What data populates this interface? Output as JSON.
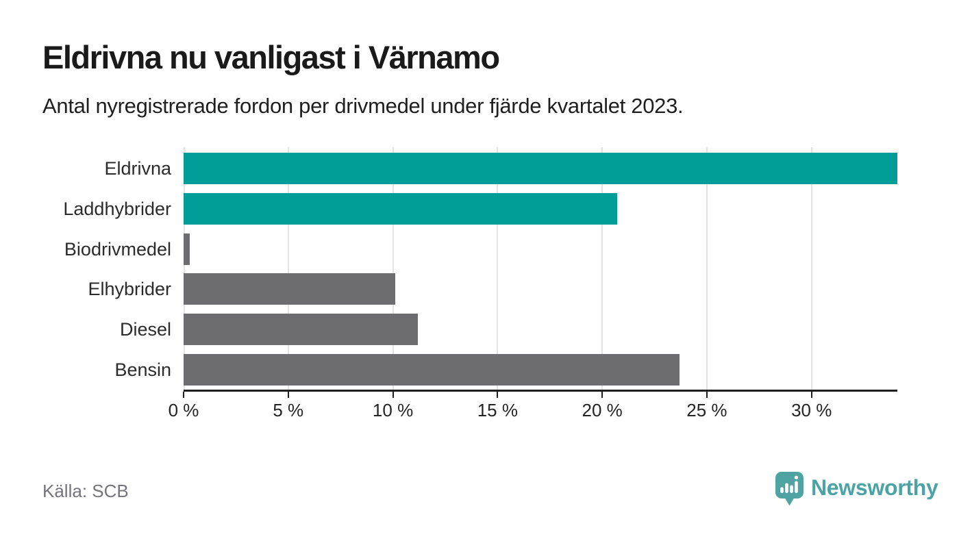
{
  "header": {
    "title": "Eldrivna nu vanligast i Värnamo",
    "subtitle": "Antal nyregistrerade fordon per drivmedel under fjärde kvartalet 2023."
  },
  "footer": {
    "source": "Källa: SCB",
    "brand": "Newsworthy"
  },
  "icons": {
    "brand_icon": "newsworthy-speech-bubble-bar-chart"
  },
  "colors": {
    "highlight": "#009d99",
    "default_bar": "#6c6c71",
    "grid": "#e3e3e3",
    "axis": "#1e1e1e",
    "brand": "#4ba3a3",
    "source_text": "#74747c"
  },
  "chart_data": {
    "type": "bar",
    "orientation": "horizontal",
    "title": "Eldrivna nu vanligast i Värnamo",
    "subtitle": "Antal nyregistrerade fordon per drivmedel under fjärde kvartalet 2023.",
    "categories": [
      "Eldrivna",
      "Laddhybrider",
      "Biodrivmedel",
      "Elhybrider",
      "Diesel",
      "Bensin"
    ],
    "values": [
      34.1,
      20.7,
      0.3,
      10.1,
      11.2,
      23.7
    ],
    "unit": "%",
    "bar_colors": [
      "#009d99",
      "#009d99",
      "#6c6c71",
      "#6c6c71",
      "#6c6c71",
      "#6c6c71"
    ],
    "xlim": [
      0,
      34.1
    ],
    "x_ticks": [
      0,
      5,
      10,
      15,
      20,
      25,
      30
    ],
    "x_tick_labels": [
      "0 %",
      "5 %",
      "10 %",
      "15 %",
      "20 %",
      "25 %",
      "30 %"
    ],
    "grid": true,
    "legend": false,
    "xlabel": "",
    "ylabel": "",
    "source": "Källa: SCB"
  }
}
